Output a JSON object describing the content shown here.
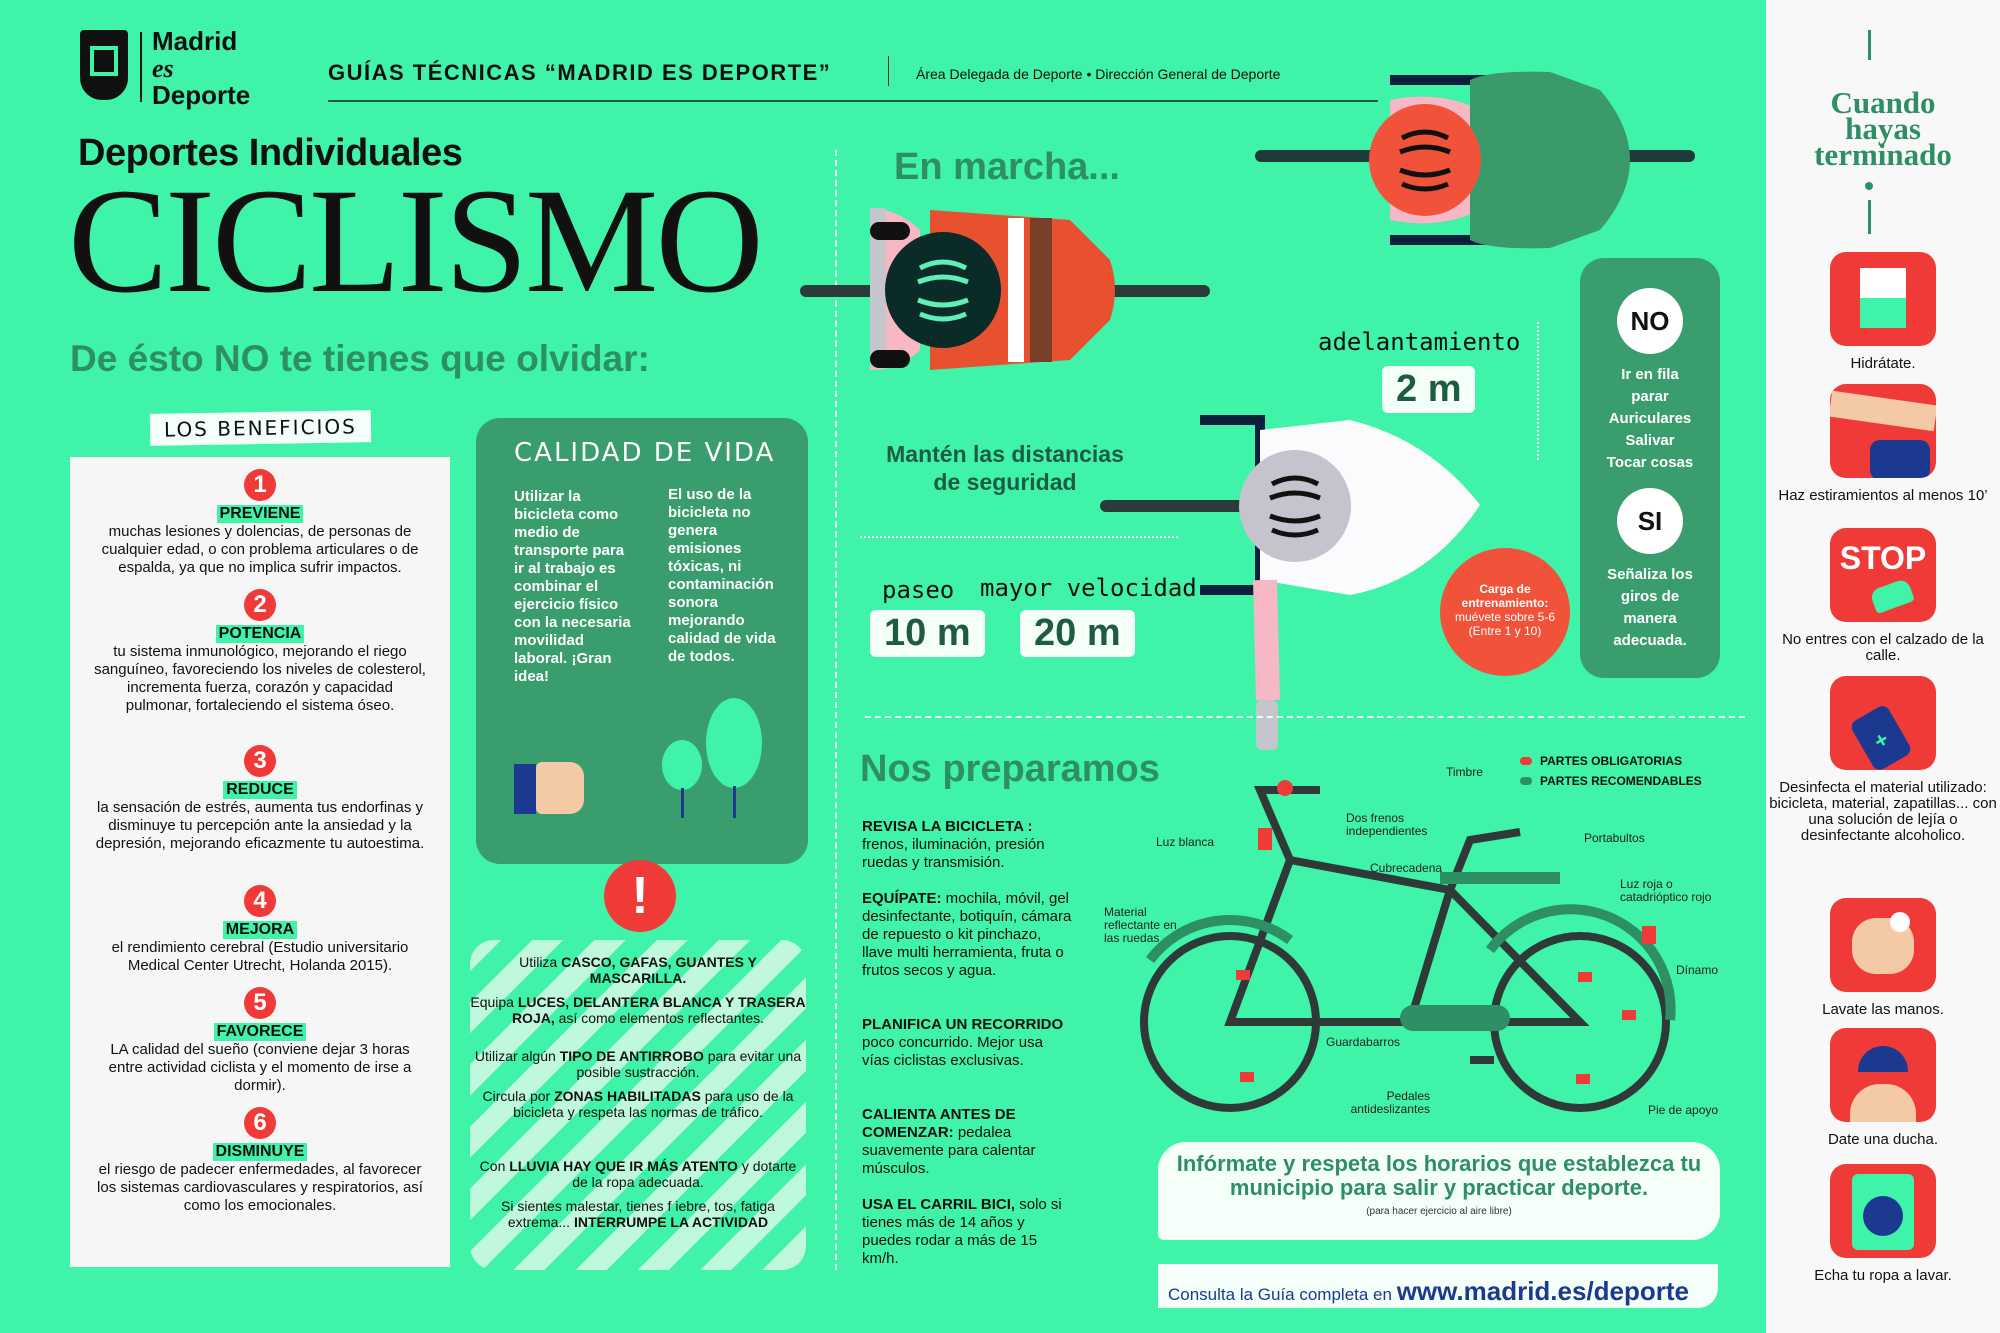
{
  "header": {
    "logo_line1": "Madrid",
    "logo_line2": "es",
    "logo_line3": "Deporte",
    "guide_title": "GUÍAS TÉCNICAS “MADRID ES DEPORTE”",
    "area": "Área Delegada de Deporte",
    "bullet": "•",
    "direccion": "Dirección General de Deporte"
  },
  "title": {
    "subtitle": "Deportes Individuales",
    "main": "CICLISMO",
    "olvidar": "De ésto NO te tienes que olvidar:"
  },
  "beneficios": {
    "label": "LOS BENEFICIOS",
    "items": [
      {
        "num": "1",
        "head": "PREVIENE",
        "text": "muchas lesiones y dolencias,  de personas de cualquier edad, o con problema articulares o de espalda,  ya que no implica sufrir impactos."
      },
      {
        "num": "2",
        "head": "POTENCIA",
        "text": "tu sistema inmunológico, mejorando el riego sanguíneo, favoreciendo los  niveles de colesterol, incrementa fuerza, corazón y capacidad pulmonar, fortaleciendo el sistema óseo."
      },
      {
        "num": "3",
        "head": "REDUCE",
        "text": "la sensación de estrés, aumenta tus endorfinas y disminuye tu percepción ante la ansiedad y la depresión, mejorando eficazmente tu autoestima."
      },
      {
        "num": "4",
        "head": "MEJORA",
        "text": "el rendimiento cerebral (Estudio universitario Medical Center Utrecht, Holanda 2015)."
      },
      {
        "num": "5",
        "head": "FAVORECE",
        "text": "LA calidad del sueño (conviene dejar 3 horas entre actividad ciclista y el momento de irse a dormir)."
      },
      {
        "num": "6",
        "head": "DISMINUYE",
        "text": "el riesgo de padecer enfermedades, al favorecer los sistemas cardiovasculares y respiratorios, así como los emocionales."
      }
    ]
  },
  "calidad": {
    "title": "CALIDAD DE VIDA",
    "col1": "Utilizar la bicicleta como medio de transporte para ir al trabajo es combinar el ejercicio físico con la necesaria movilidad laboral. ¡Gran idea!",
    "col2": "El uso de la bicicleta no genera emisiones tóxicas, ni contaminación sonora mejorando calidad de vida de todos."
  },
  "advertencias": {
    "icon": "!",
    "items": [
      {
        "pre": "Utiliza ",
        "bold": "CASCO, GAFAS, GUANTES Y MASCARILLA.",
        "post": ""
      },
      {
        "pre": "Equipa ",
        "bold": "LUCES, DELANTERA BLANCA Y TRASERA ROJA,",
        "post": " así como elementos reflectantes."
      },
      {
        "pre": "Utilizar algún ",
        "bold": "TIPO DE ANTIRROBO",
        "post": " para evitar una posible sustracción."
      },
      {
        "pre": "Circula por ",
        "bold": "ZONAS HABILITADAS",
        "post": " para uso de la bicicleta y respeta las normas de tráfico."
      },
      {
        "pre": "Con ",
        "bold": "LLUVIA HAY QUE IR MÁS ATENTO",
        "post": " y dotarte de la ropa adecuada."
      },
      {
        "pre": "Si sientes malestar, tienes f iebre, tos, fatiga extrema... ",
        "bold": "INTERRUMPE LA ACTIVIDAD",
        "post": ""
      }
    ]
  },
  "marcha": {
    "title": "En marcha...",
    "mantener": "Mantén las distancias de seguridad",
    "adelantamiento_label": "adelantamiento",
    "adelantamiento_val": "2 m",
    "paseo_label": "paseo",
    "paseo_val": "10 m",
    "mayor_label": "mayor velocidad",
    "mayor_val": "20 m",
    "carga": "Carga de entrenamiento:",
    "carga_sub": "muévete sobre 5-6 (Entre 1 y 10)",
    "no_badge": "NO",
    "no_text": [
      "Ir en fila",
      "parar",
      "Auriculares",
      "Salivar",
      "Tocar cosas"
    ],
    "si_badge": "SI",
    "si_text": "Señaliza los giros de manera adecuada."
  },
  "preparamos": {
    "title": "Nos preparamos",
    "items": [
      {
        "head": "REVISA LA BICICLETA :",
        "text": " frenos, iluminación, presión ruedas y transmisión."
      },
      {
        "head": "EQUÍPATE:",
        "text": " mochila, móvil, gel desinfectante, botiquín, cámara de repuesto o kit pinchazo, llave multi herramienta, fruta o frutos secos y agua."
      },
      {
        "head": "PLANIFICA UN RECORRIDO",
        "text": " poco concurrido. Mejor usa vías ciclistas exclusivas."
      },
      {
        "head": "CALIENTA ANTES DE COMENZAR:",
        "text": " pedalea suavemente para calentar músculos."
      },
      {
        "head": "USA EL CARRIL BICI,",
        "text": " solo si tienes más de 14 años y puedes rodar a más de 15 km/h."
      }
    ],
    "legend_obl": "PARTES OBLIGATORIAS",
    "legend_rec": "PARTES RECOMENDABLES",
    "colors": {
      "obligatorias": "#f03a38",
      "recomendables": "#2d8f63"
    },
    "labels": {
      "timbre": "Timbre",
      "frenos": "Dos frenos independientes",
      "luz_blanca": "Luz blanca",
      "portabultos": "Portabultos",
      "cubrecadena": "Cubrecadena",
      "luz_roja": "Luz roja o catadrióptico rojo",
      "material": "Material reflectante en las ruedas",
      "dinamo": "Dínamo",
      "guardabarros": "Guardabarros",
      "pedales": "Pedales antideslizantes",
      "pie": "Pie de apoyo"
    }
  },
  "info": {
    "main": "Infórmate y respeta los horarios que establezca tu municipio para salir y practicar deporte.",
    "small": "(para hacer ejercicio al aire libre)",
    "consulta": "Consulta la Guía completa en ",
    "url": "www.madrid.es/deporte"
  },
  "cuando": {
    "title_lines": [
      "Cuando",
      "hayas",
      "terminado"
    ],
    "tips": [
      {
        "icon": "glass-icon",
        "label": "Hidrátate."
      },
      {
        "icon": "stretch-icon",
        "label": "Haz estiramientos al menos 10’"
      },
      {
        "icon": "stop-shoe-icon",
        "label": "No entres con el calzado de la calle.",
        "badge": "STOP"
      },
      {
        "icon": "spray-icon",
        "label": "Desinfecta el material utilizado: bicicleta, material, zapatillas... con una solución de lejía o desinfectante alcoholico."
      },
      {
        "icon": "wash-hands-icon",
        "label": "Lavate las manos."
      },
      {
        "icon": "shower-icon",
        "label": "Date una ducha."
      },
      {
        "icon": "washing-machine-icon",
        "label": "Echa tu ropa a lavar."
      }
    ]
  },
  "colors": {
    "background": "#3ff3a8",
    "dark_green": "#2d8f63",
    "red": "#f03a38",
    "navy": "#1b3a8f"
  }
}
